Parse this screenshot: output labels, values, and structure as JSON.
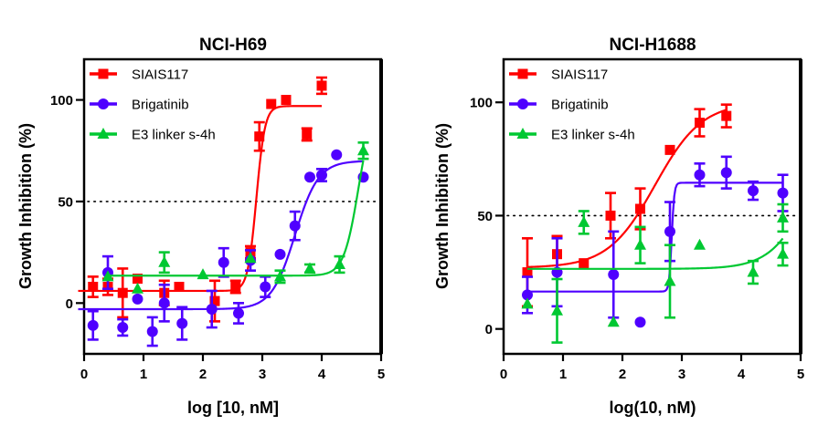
{
  "chart_data": [
    {
      "type": "scatter",
      "title": "NCI-H69",
      "xlabel": "log [10, nM]",
      "ylabel": "Growth Inhibition (%)",
      "xlim": [
        0,
        5
      ],
      "ylim": [
        -25,
        120
      ],
      "xticks": [
        0,
        1,
        2,
        3,
        4,
        5
      ],
      "yticks": [
        0,
        50,
        100
      ],
      "reference_line": {
        "y": 50,
        "style": "dotted"
      },
      "legend": "top-left",
      "series": [
        {
          "name": "SIAIS117",
          "color": "#ff0000",
          "marker": "square",
          "points": [
            {
              "x": 0.15,
              "y": 8,
              "err": 5
            },
            {
              "x": 0.4,
              "y": 8,
              "err": 4
            },
            {
              "x": 0.65,
              "y": 5,
              "err": 12
            },
            {
              "x": 0.9,
              "y": 12,
              "err": 0
            },
            {
              "x": 1.35,
              "y": 5,
              "err": 6
            },
            {
              "x": 1.6,
              "y": 8,
              "err": 0
            },
            {
              "x": 2.2,
              "y": 1,
              "err": 10
            },
            {
              "x": 2.55,
              "y": 8,
              "err": 3
            },
            {
              "x": 2.8,
              "y": 25,
              "err": 3
            },
            {
              "x": 2.95,
              "y": 82,
              "err": 7
            },
            {
              "x": 3.15,
              "y": 98,
              "err": 0
            },
            {
              "x": 3.4,
              "y": 100,
              "err": 0
            },
            {
              "x": 3.75,
              "y": 83,
              "err": 3
            },
            {
              "x": 4.0,
              "y": 107,
              "err": 4
            }
          ],
          "fit": {
            "bottom": 6,
            "top": 97,
            "logEC50": 2.9,
            "hill": 6,
            "xrange": [
              -0.1,
              4.0
            ]
          }
        },
        {
          "name": "Brigatinib",
          "color": "#4f00ff",
          "marker": "circle",
          "points": [
            {
              "x": 0.15,
              "y": -11,
              "err": 7
            },
            {
              "x": 0.4,
              "y": 15,
              "err": 8
            },
            {
              "x": 0.65,
              "y": -12,
              "err": 4
            },
            {
              "x": 0.9,
              "y": 2,
              "err": 0
            },
            {
              "x": 1.15,
              "y": -14,
              "err": 7
            },
            {
              "x": 1.35,
              "y": 0,
              "err": 9
            },
            {
              "x": 1.65,
              "y": -10,
              "err": 8
            },
            {
              "x": 2.15,
              "y": -3,
              "err": 9
            },
            {
              "x": 2.35,
              "y": 20,
              "err": 7
            },
            {
              "x": 2.6,
              "y": -5,
              "err": 5
            },
            {
              "x": 2.8,
              "y": 21,
              "err": 5
            },
            {
              "x": 3.05,
              "y": 8,
              "err": 5
            },
            {
              "x": 3.3,
              "y": 24,
              "err": 0
            },
            {
              "x": 3.55,
              "y": 38,
              "err": 7
            },
            {
              "x": 3.8,
              "y": 62,
              "err": 0
            },
            {
              "x": 4.0,
              "y": 63,
              "err": 3
            },
            {
              "x": 4.25,
              "y": 73,
              "err": 0
            },
            {
              "x": 4.7,
              "y": 62,
              "err": 0
            }
          ],
          "fit": {
            "bottom": -3,
            "top": 70,
            "logEC50": 3.55,
            "hill": 2.2,
            "xrange": [
              -0.1,
              4.7
            ]
          }
        },
        {
          "name": "E3 linker s-4h",
          "color": "#00c832",
          "marker": "triangle",
          "points": [
            {
              "x": 0.4,
              "y": 13,
              "err": 0
            },
            {
              "x": 0.9,
              "y": 7,
              "err": 0
            },
            {
              "x": 1.35,
              "y": 20,
              "err": 5
            },
            {
              "x": 2.0,
              "y": 14,
              "err": 0
            },
            {
              "x": 2.8,
              "y": 22,
              "err": 0
            },
            {
              "x": 3.3,
              "y": 13,
              "err": 3
            },
            {
              "x": 3.8,
              "y": 17,
              "err": 2
            },
            {
              "x": 4.3,
              "y": 19,
              "err": 4
            },
            {
              "x": 4.7,
              "y": 75,
              "err": 4
            }
          ],
          "fit": {
            "bottom": 13.5,
            "top": 100,
            "logEC50": 4.62,
            "hill": 3.5,
            "xrange": [
              0.4,
              4.7
            ]
          }
        }
      ]
    },
    {
      "type": "scatter",
      "title": "NCI-H1688",
      "xlabel": "log(10, nM)",
      "ylabel": "Growth Inhibition (%)",
      "xlim": [
        0,
        5
      ],
      "ylim": [
        -11,
        119
      ],
      "xticks": [
        0,
        1,
        2,
        3,
        4,
        5
      ],
      "yticks": [
        0,
        50,
        100
      ],
      "reference_line": {
        "y": 50,
        "style": "dotted"
      },
      "legend": "top-left",
      "series": [
        {
          "name": "SIAIS117",
          "color": "#ff0000",
          "marker": "square",
          "points": [
            {
              "x": 0.4,
              "y": 25,
              "err": 15
            },
            {
              "x": 0.9,
              "y": 33,
              "err": 8
            },
            {
              "x": 1.35,
              "y": 29,
              "err": 0
            },
            {
              "x": 1.8,
              "y": 50,
              "err": 10
            },
            {
              "x": 2.3,
              "y": 53,
              "err": 9
            },
            {
              "x": 2.8,
              "y": 79,
              "err": 0
            },
            {
              "x": 3.3,
              "y": 91,
              "err": 6
            },
            {
              "x": 3.75,
              "y": 94,
              "err": 5
            }
          ],
          "fit": {
            "bottom": 27,
            "top": 100,
            "logEC50": 2.55,
            "hill": 1.1,
            "xrange": [
              0.4,
              3.75
            ]
          }
        },
        {
          "name": "Brigatinib",
          "color": "#4f00ff",
          "marker": "circle",
          "points": [
            {
              "x": 0.4,
              "y": 15,
              "err": 8
            },
            {
              "x": 0.9,
              "y": 25,
              "err": 15
            },
            {
              "x": 1.85,
              "y": 24,
              "err": 19
            },
            {
              "x": 2.3,
              "y": 3,
              "err": 0
            },
            {
              "x": 2.8,
              "y": 43,
              "err": 13
            },
            {
              "x": 3.3,
              "y": 68,
              "err": 5
            },
            {
              "x": 3.75,
              "y": 69,
              "err": 7
            },
            {
              "x": 4.2,
              "y": 61,
              "err": 4
            },
            {
              "x": 4.7,
              "y": 60,
              "err": 8
            }
          ],
          "fit": {
            "bottom": 16.5,
            "top": 64.5,
            "logEC50": 2.83,
            "hill": 20,
            "xrange": [
              0.4,
              4.7
            ]
          }
        },
        {
          "name": "E3 linker s-4h",
          "color": "#00c832",
          "marker": "triangle",
          "points": [
            {
              "x": 0.4,
              "y": 11,
              "err": 0
            },
            {
              "x": 0.9,
              "y": 8,
              "err": 14
            },
            {
              "x": 1.35,
              "y": 47,
              "err": 5
            },
            {
              "x": 1.85,
              "y": 3,
              "err": 0
            },
            {
              "x": 2.3,
              "y": 37,
              "err": 8
            },
            {
              "x": 2.8,
              "y": 21,
              "err": 16
            },
            {
              "x": 3.3,
              "y": 37,
              "err": 0
            },
            {
              "x": 4.2,
              "y": 25,
              "err": 5
            },
            {
              "x": 4.7,
              "y": 33,
              "err": 5
            },
            {
              "x": 4.7,
              "y": 49,
              "err": 6
            }
          ],
          "fit": {
            "bottom": 26.5,
            "top": 100,
            "logEC50": 5.2,
            "hill": 1.3,
            "xrange": [
              0.4,
              4.7
            ]
          }
        }
      ]
    }
  ]
}
